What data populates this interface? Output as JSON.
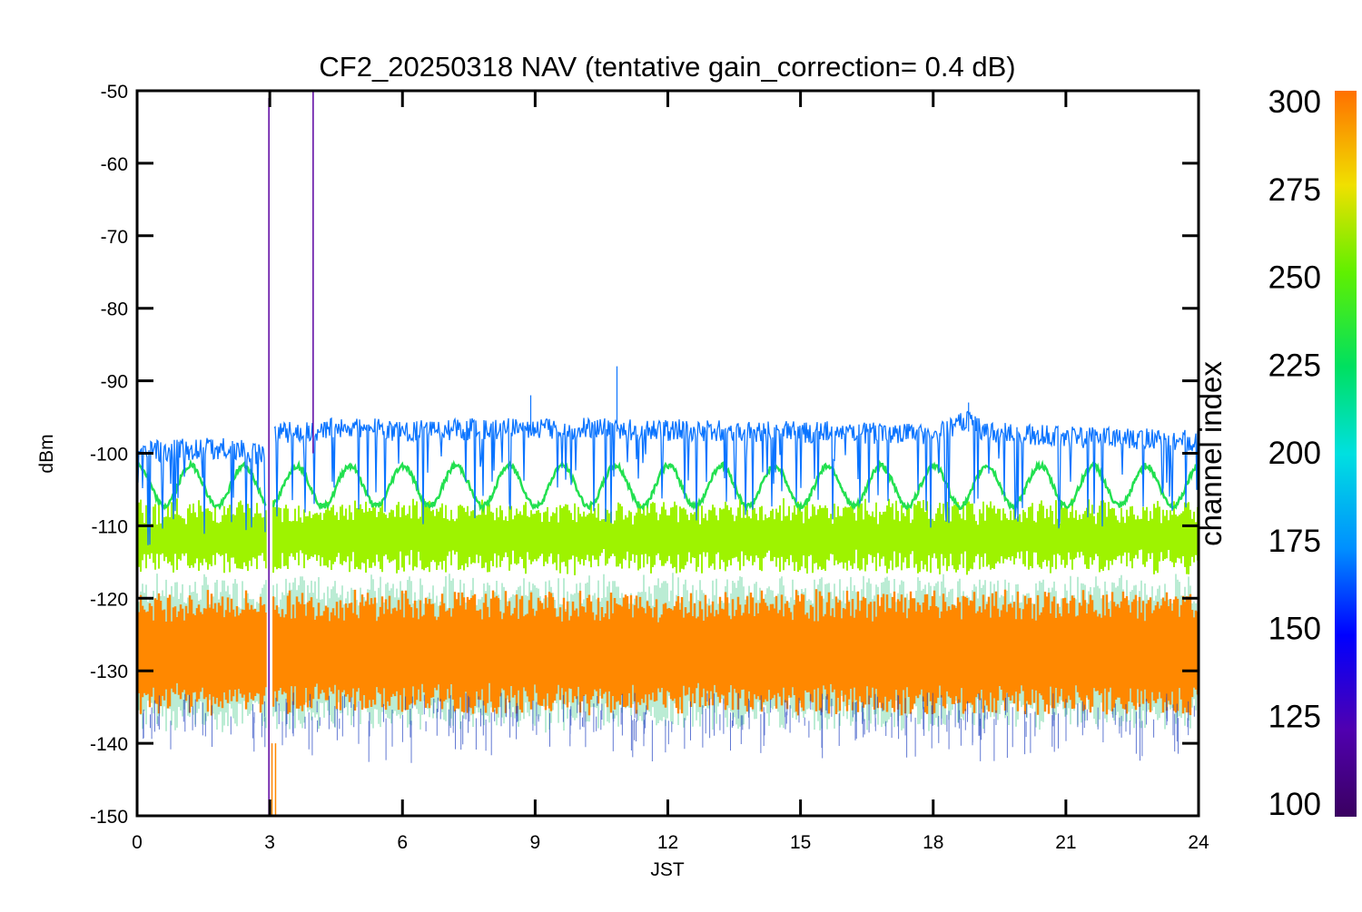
{
  "chart_data": {
    "type": "line",
    "title": "CF2_20250318 NAV (tentative gain_correction=  0.4 dB)",
    "xlabel": "JST",
    "ylabel": "dBm",
    "xlim": [
      0,
      24
    ],
    "ylim": [
      -150,
      -50
    ],
    "xticks": [
      "0",
      "3",
      "6",
      "9",
      "12",
      "15",
      "18",
      "21",
      "24"
    ],
    "yticks": [
      "-50",
      "-60",
      "-70",
      "-80",
      "-90",
      "-100",
      "-110",
      "-120",
      "-130",
      "-140",
      "-150"
    ],
    "grid": false,
    "colorbar": {
      "label": "channel index",
      "range": [
        100,
        300
      ],
      "ticks": [
        "300",
        "275",
        "250",
        "225",
        "200",
        "175",
        "150",
        "125",
        "100"
      ]
    },
    "series": [
      {
        "channel": 150,
        "color": "#0a74ff",
        "segments": [
          {
            "x": [
              0,
              1.0,
              2.0,
              2.9
            ],
            "y": [
              -99.8,
              -99.5,
              -99.3,
              -100.2
            ]
          },
          {
            "x": [
              3.1,
              4.0,
              4.5,
              6.0,
              8.0,
              10.0,
              12.0,
              14.0,
              16.0,
              18.0,
              18.8,
              19.2,
              20.0,
              22.0,
              24.0
            ],
            "y": [
              -97.2,
              -97.0,
              -96.3,
              -97.0,
              -96.6,
              -96.6,
              -96.8,
              -97.0,
              -97.1,
              -97.5,
              -95.5,
              -97.0,
              -97.5,
              -97.9,
              -98.3
            ]
          }
        ],
        "spikes": [
          {
            "x": 10.85,
            "y": -88
          },
          {
            "x": 8.9,
            "y": -92
          },
          {
            "x": 18.8,
            "y": -93
          }
        ]
      },
      {
        "channel": 225,
        "color": "#22e050",
        "shape": "sinusoid",
        "mean": -104.5,
        "amplitude": 2.8,
        "period_hours": 1.2,
        "x": [
          0,
          24
        ]
      },
      {
        "channel": 260,
        "color": "#9ef300",
        "band_center": -111.5,
        "band_halfwidth": 5,
        "x": [
          0,
          24
        ]
      },
      {
        "channel": 290,
        "color": "#ff8800",
        "band_center": -127.5,
        "band_halfwidth": 6.5,
        "x": [
          0,
          24
        ]
      }
    ],
    "vertical_spikes": [
      {
        "x": 2.98,
        "y_from": -150,
        "y_to": -51,
        "channel": 110,
        "color": "#5a00a0"
      },
      {
        "x": 3.05,
        "y_from": -150,
        "y_to": -140,
        "channel": 290,
        "color": "#ff8800"
      },
      {
        "x": 3.13,
        "y_from": -150,
        "y_to": -140,
        "channel": 290,
        "color": "#ff8800"
      },
      {
        "x": 3.98,
        "y_from": -100,
        "y_to": -50,
        "channel": 110,
        "color": "#5a00a0"
      }
    ]
  }
}
